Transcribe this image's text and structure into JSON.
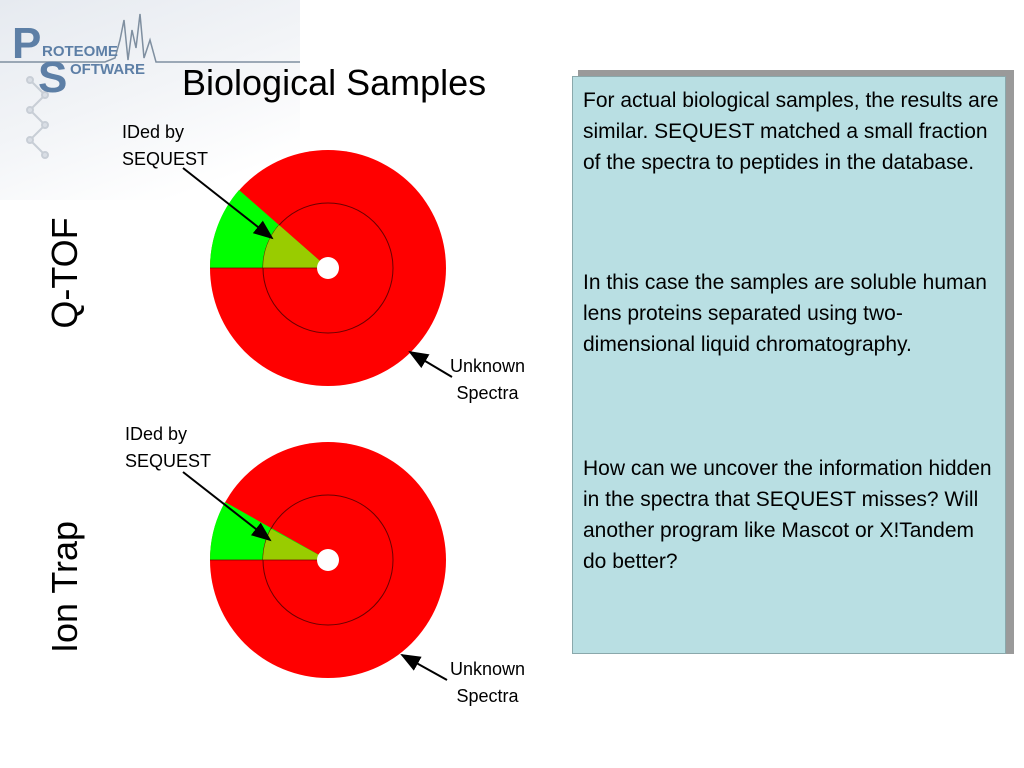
{
  "logo": {
    "line1": "ROTEOME",
    "line2": "OFTWARE",
    "big1": "P",
    "big2": "S"
  },
  "title": "Biological Samples",
  "charts": [
    {
      "side_label": "Q-TOF",
      "ided_label_line1": "IDed by",
      "ided_label_line2": "SEQUEST",
      "unknown_label_line1": "Unknown",
      "unknown_label_line2": "Spectra"
    },
    {
      "side_label": "Ion Trap",
      "ided_label_line1": "IDed by",
      "ided_label_line2": "SEQUEST",
      "unknown_label_line1": "Unknown",
      "unknown_label_line2": "Spectra"
    }
  ],
  "panel": {
    "p1": "For actual biological samples,  the results are similar.  SEQUEST matched a small fraction of the spectra to peptides in the database.",
    "p2": "In this case the samples are soluble human lens proteins separated using two-dimensional liquid chromatography.",
    "p3": "How can we uncover the information hidden in the spectra that SEQUEST misses?  Will another program like Mascot or X!Tandem do better?"
  },
  "colors": {
    "unknown": "#ff0000",
    "ided_outer": "#00ff00",
    "ided_inner": "#99cc00",
    "panel_bg": "#b9dfe3"
  }
}
